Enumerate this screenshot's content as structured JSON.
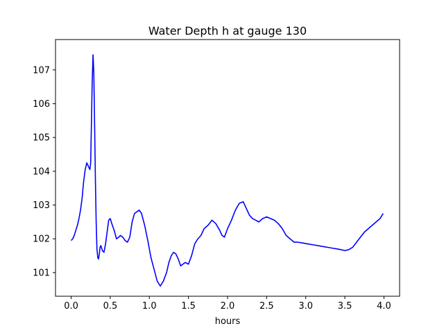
{
  "chart_data": {
    "type": "line",
    "title": "Water Depth h at gauge 130",
    "xlabel": "hours",
    "ylabel": "",
    "xlim": [
      -0.2,
      4.2
    ],
    "ylim": [
      100.3,
      107.9
    ],
    "xticks": [
      0.0,
      0.5,
      1.0,
      1.5,
      2.0,
      2.5,
      3.0,
      3.5,
      4.0
    ],
    "xtick_labels": [
      "0.0",
      "0.5",
      "1.0",
      "1.5",
      "2.0",
      "2.5",
      "3.0",
      "3.5",
      "4.0"
    ],
    "yticks": [
      101,
      102,
      103,
      104,
      105,
      106,
      107
    ],
    "ytick_labels": [
      "101",
      "102",
      "103",
      "104",
      "105",
      "106",
      "107"
    ],
    "grid": false,
    "series": [
      {
        "color": "#0000ff",
        "x": [
          0.0,
          0.02,
          0.04,
          0.06,
          0.08,
          0.1,
          0.12,
          0.14,
          0.16,
          0.18,
          0.2,
          0.22,
          0.24,
          0.25,
          0.26,
          0.27,
          0.28,
          0.29,
          0.3,
          0.31,
          0.32,
          0.33,
          0.34,
          0.35,
          0.36,
          0.37,
          0.38,
          0.4,
          0.42,
          0.44,
          0.46,
          0.48,
          0.5,
          0.52,
          0.55,
          0.58,
          0.61,
          0.63,
          0.66,
          0.69,
          0.72,
          0.75,
          0.78,
          0.81,
          0.84,
          0.87,
          0.9,
          0.94,
          0.98,
          1.02,
          1.06,
          1.1,
          1.14,
          1.18,
          1.22,
          1.25,
          1.28,
          1.31,
          1.34,
          1.37,
          1.4,
          1.43,
          1.46,
          1.5,
          1.54,
          1.58,
          1.62,
          1.66,
          1.7,
          1.75,
          1.8,
          1.85,
          1.9,
          1.93,
          1.96,
          2.0,
          2.05,
          2.1,
          2.15,
          2.2,
          2.25,
          2.28,
          2.32,
          2.36,
          2.4,
          2.45,
          2.5,
          2.55,
          2.6,
          2.65,
          2.7,
          2.75,
          2.8,
          2.85,
          2.9,
          2.95,
          3.0,
          3.05,
          3.1,
          3.15,
          3.2,
          3.25,
          3.3,
          3.35,
          3.4,
          3.45,
          3.5,
          3.55,
          3.6,
          3.65,
          3.7,
          3.75,
          3.8,
          3.85,
          3.9,
          3.95,
          3.99
        ],
        "y": [
          101.95,
          102.0,
          102.1,
          102.25,
          102.4,
          102.6,
          102.85,
          103.2,
          103.7,
          104.05,
          104.25,
          104.15,
          104.05,
          104.25,
          105.5,
          106.7,
          107.45,
          106.9,
          105.4,
          103.8,
          102.5,
          101.7,
          101.45,
          101.4,
          101.55,
          101.75,
          101.8,
          101.65,
          101.6,
          101.85,
          102.2,
          102.55,
          102.6,
          102.45,
          102.25,
          102.0,
          102.05,
          102.1,
          102.05,
          101.95,
          101.9,
          102.05,
          102.5,
          102.75,
          102.8,
          102.85,
          102.75,
          102.4,
          101.95,
          101.45,
          101.1,
          100.75,
          100.6,
          100.75,
          101.0,
          101.3,
          101.5,
          101.6,
          101.55,
          101.4,
          101.2,
          101.25,
          101.3,
          101.25,
          101.5,
          101.85,
          102.0,
          102.1,
          102.3,
          102.4,
          102.55,
          102.45,
          102.25,
          102.1,
          102.05,
          102.3,
          102.55,
          102.85,
          103.05,
          103.1,
          102.85,
          102.7,
          102.6,
          102.55,
          102.5,
          102.6,
          102.65,
          102.6,
          102.55,
          102.45,
          102.3,
          102.1,
          102.0,
          101.9,
          101.9,
          101.88,
          101.86,
          101.84,
          101.82,
          101.8,
          101.78,
          101.76,
          101.74,
          101.72,
          101.7,
          101.68,
          101.65,
          101.68,
          101.75,
          101.9,
          102.05,
          102.2,
          102.3,
          102.4,
          102.5,
          102.6,
          102.75
        ]
      }
    ]
  }
}
